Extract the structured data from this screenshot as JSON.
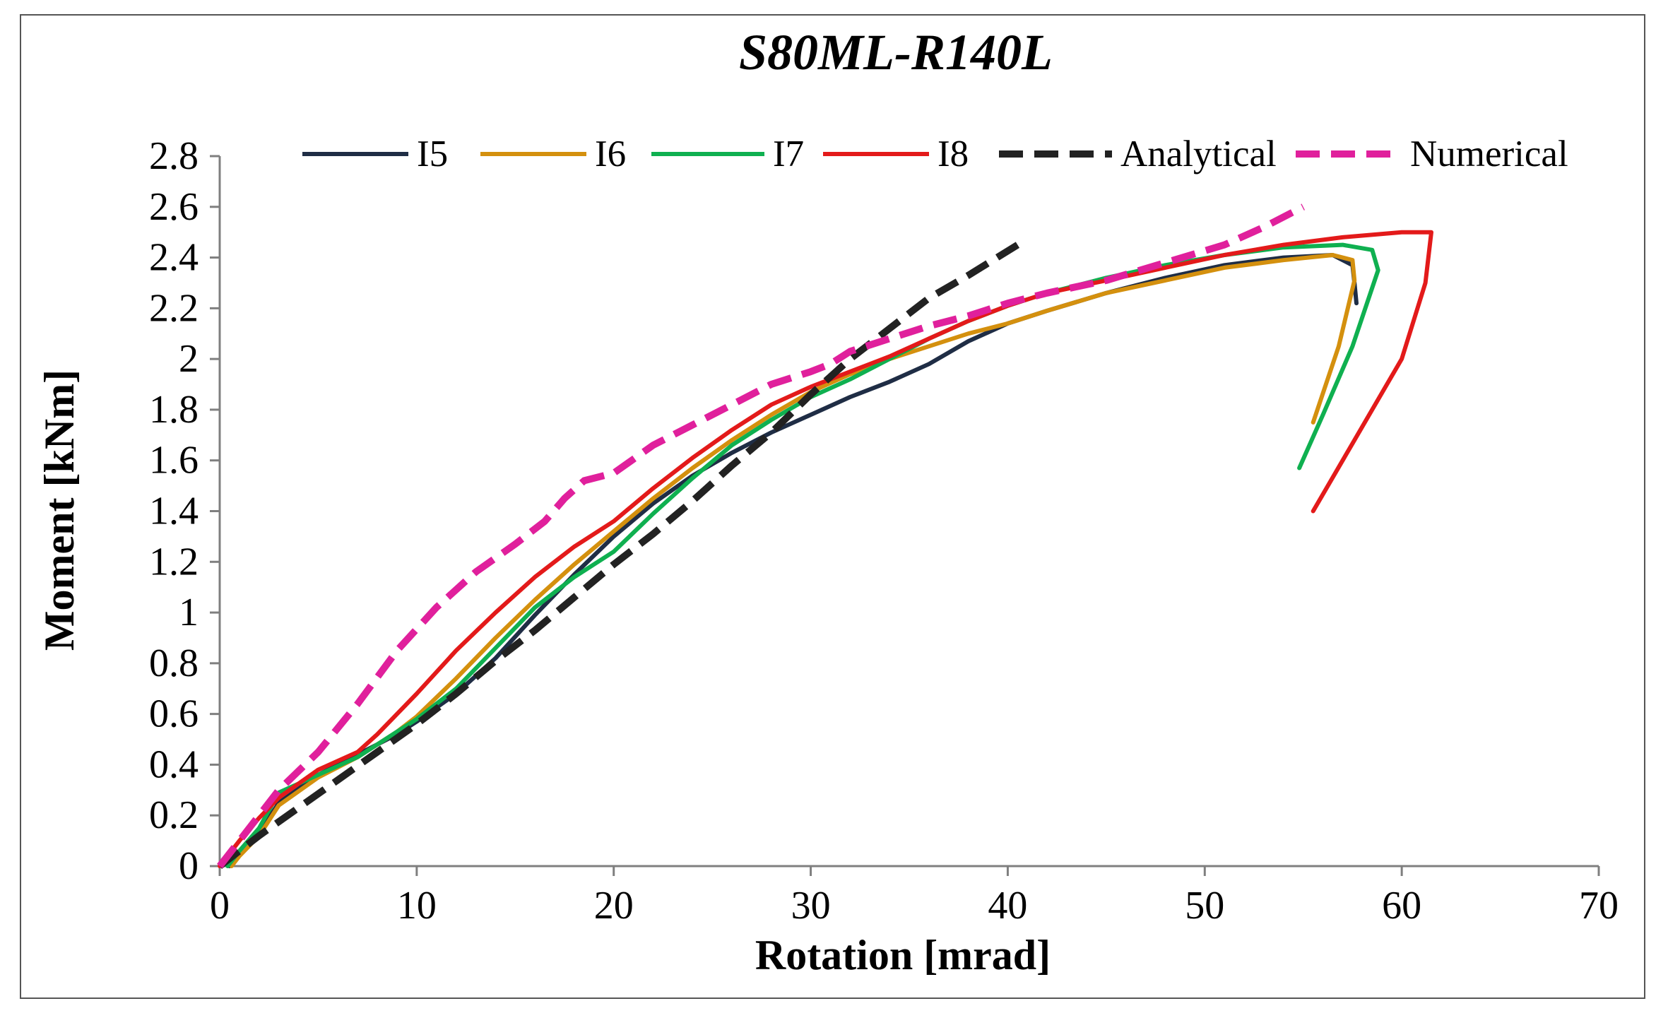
{
  "chart_data": {
    "type": "line",
    "title": "S80ML-R140L",
    "xlabel": "Rotation [mrad]",
    "ylabel": "Moment [kNm]",
    "xlim": [
      0,
      70
    ],
    "ylim": [
      0,
      2.8
    ],
    "xticks": [
      0,
      10,
      20,
      30,
      40,
      50,
      60,
      70
    ],
    "xtick_labels": [
      "0",
      "10",
      "20",
      "30",
      "40",
      "50",
      "60",
      "70"
    ],
    "yticks": [
      0,
      0.2,
      0.4,
      0.6,
      0.8,
      1.0,
      1.2,
      1.4,
      1.6,
      1.8,
      2.0,
      2.2,
      2.4,
      2.6,
      2.8
    ],
    "ytick_labels": [
      "0",
      "0.2",
      "0.4",
      "0.6",
      "0.8",
      "1",
      "1.2",
      "1.4",
      "1.6",
      "1.8",
      "2",
      "2.2",
      "2.4",
      "2.6",
      "2.8"
    ],
    "grid": false,
    "legend_position": "top",
    "series": [
      {
        "name": "I5",
        "color": "#1f2d45",
        "dash": false,
        "points": [
          [
            0.5,
            0
          ],
          [
            1,
            0.05
          ],
          [
            2,
            0.13
          ],
          [
            3,
            0.25
          ],
          [
            5,
            0.36
          ],
          [
            7,
            0.44
          ],
          [
            9,
            0.52
          ],
          [
            10,
            0.57
          ],
          [
            12,
            0.68
          ],
          [
            14,
            0.82
          ],
          [
            16,
            0.99
          ],
          [
            18,
            1.15
          ],
          [
            20,
            1.3
          ],
          [
            22,
            1.43
          ],
          [
            24,
            1.54
          ],
          [
            26,
            1.63
          ],
          [
            28,
            1.71
          ],
          [
            30,
            1.78
          ],
          [
            32,
            1.85
          ],
          [
            34,
            1.91
          ],
          [
            36,
            1.98
          ],
          [
            38,
            2.07
          ],
          [
            40,
            2.14
          ],
          [
            42,
            2.19
          ],
          [
            45,
            2.26
          ],
          [
            48,
            2.32
          ],
          [
            51,
            2.37
          ],
          [
            54,
            2.4
          ],
          [
            56.5,
            2.41
          ],
          [
            57.5,
            2.37
          ],
          [
            57.6,
            2.3
          ],
          [
            57.7,
            2.22
          ]
        ]
      },
      {
        "name": "I6",
        "color": "#d4900e",
        "dash": false,
        "points": [
          [
            0.6,
            0
          ],
          [
            1,
            0.04
          ],
          [
            2,
            0.12
          ],
          [
            3,
            0.24
          ],
          [
            5,
            0.35
          ],
          [
            7,
            0.43
          ],
          [
            9,
            0.53
          ],
          [
            10,
            0.59
          ],
          [
            12,
            0.74
          ],
          [
            14,
            0.9
          ],
          [
            16,
            1.05
          ],
          [
            18,
            1.19
          ],
          [
            20,
            1.32
          ],
          [
            22,
            1.45
          ],
          [
            24,
            1.57
          ],
          [
            26,
            1.68
          ],
          [
            28,
            1.78
          ],
          [
            30,
            1.87
          ],
          [
            32,
            1.94
          ],
          [
            34,
            2.0
          ],
          [
            36,
            2.05
          ],
          [
            38,
            2.1
          ],
          [
            40,
            2.14
          ],
          [
            42,
            2.19
          ],
          [
            45,
            2.26
          ],
          [
            48,
            2.31
          ],
          [
            51,
            2.36
          ],
          [
            54,
            2.39
          ],
          [
            56.5,
            2.41
          ],
          [
            57.5,
            2.39
          ],
          [
            57.6,
            2.31
          ],
          [
            56.8,
            2.05
          ],
          [
            55.5,
            1.75
          ]
        ]
      },
      {
        "name": "I7",
        "color": "#0fb050",
        "dash": false,
        "points": [
          [
            0.4,
            0
          ],
          [
            1,
            0.06
          ],
          [
            2,
            0.15
          ],
          [
            3,
            0.29
          ],
          [
            5,
            0.36
          ],
          [
            7,
            0.43
          ],
          [
            9,
            0.53
          ],
          [
            10,
            0.58
          ],
          [
            12,
            0.7
          ],
          [
            14,
            0.86
          ],
          [
            16,
            1.02
          ],
          [
            18,
            1.14
          ],
          [
            20,
            1.24
          ],
          [
            22,
            1.39
          ],
          [
            24,
            1.53
          ],
          [
            26,
            1.66
          ],
          [
            28,
            1.76
          ],
          [
            30,
            1.85
          ],
          [
            32,
            1.92
          ],
          [
            34,
            2.0
          ],
          [
            36,
            2.08
          ],
          [
            38,
            2.15
          ],
          [
            40,
            2.21
          ],
          [
            42,
            2.26
          ],
          [
            45,
            2.32
          ],
          [
            48,
            2.37
          ],
          [
            51,
            2.41
          ],
          [
            54,
            2.44
          ],
          [
            57,
            2.45
          ],
          [
            58.5,
            2.43
          ],
          [
            58.8,
            2.35
          ],
          [
            57.5,
            2.05
          ],
          [
            56,
            1.78
          ],
          [
            54.8,
            1.57
          ]
        ]
      },
      {
        "name": "I8",
        "color": "#e31a1a",
        "dash": false,
        "points": [
          [
            0,
            0
          ],
          [
            1,
            0.1
          ],
          [
            2,
            0.19
          ],
          [
            3,
            0.27
          ],
          [
            5,
            0.38
          ],
          [
            7,
            0.45
          ],
          [
            8,
            0.52
          ],
          [
            10,
            0.68
          ],
          [
            12,
            0.85
          ],
          [
            14,
            1.0
          ],
          [
            16,
            1.14
          ],
          [
            18,
            1.26
          ],
          [
            20,
            1.36
          ],
          [
            22,
            1.49
          ],
          [
            24,
            1.61
          ],
          [
            26,
            1.72
          ],
          [
            28,
            1.82
          ],
          [
            30,
            1.89
          ],
          [
            32,
            1.95
          ],
          [
            34,
            2.01
          ],
          [
            36,
            2.08
          ],
          [
            38,
            2.15
          ],
          [
            40,
            2.21
          ],
          [
            42,
            2.26
          ],
          [
            45,
            2.31
          ],
          [
            48,
            2.36
          ],
          [
            51,
            2.41
          ],
          [
            54,
            2.45
          ],
          [
            57,
            2.48
          ],
          [
            60,
            2.5
          ],
          [
            61.5,
            2.5
          ],
          [
            61.2,
            2.3
          ],
          [
            60,
            2.0
          ],
          [
            58.5,
            1.8
          ],
          [
            55.5,
            1.4
          ]
        ]
      },
      {
        "name": "Analytical",
        "color": "#222222",
        "dash": true,
        "points": [
          [
            0,
            0
          ],
          [
            2,
            0.12
          ],
          [
            4,
            0.23
          ],
          [
            6,
            0.34
          ],
          [
            8,
            0.45
          ],
          [
            10,
            0.56
          ],
          [
            12,
            0.68
          ],
          [
            14,
            0.81
          ],
          [
            16,
            0.93
          ],
          [
            18,
            1.06
          ],
          [
            20,
            1.19
          ],
          [
            22,
            1.31
          ],
          [
            24,
            1.44
          ],
          [
            26,
            1.58
          ],
          [
            28,
            1.71
          ],
          [
            30,
            1.86
          ],
          [
            32,
            2.0
          ],
          [
            34,
            2.12
          ],
          [
            36,
            2.24
          ],
          [
            38,
            2.33
          ],
          [
            40.5,
            2.45
          ]
        ]
      },
      {
        "name": "Numerical",
        "color": "#e0209c",
        "dash": true,
        "points": [
          [
            0,
            0
          ],
          [
            1,
            0.1
          ],
          [
            2,
            0.2
          ],
          [
            3,
            0.3
          ],
          [
            5,
            0.45
          ],
          [
            7,
            0.64
          ],
          [
            9,
            0.85
          ],
          [
            11,
            1.02
          ],
          [
            13,
            1.16
          ],
          [
            15,
            1.27
          ],
          [
            16.5,
            1.36
          ],
          [
            17.5,
            1.45
          ],
          [
            18.5,
            1.52
          ],
          [
            20,
            1.55
          ],
          [
            22,
            1.66
          ],
          [
            24,
            1.74
          ],
          [
            26,
            1.82
          ],
          [
            28,
            1.9
          ],
          [
            30,
            1.95
          ],
          [
            31,
            1.98
          ],
          [
            32,
            2.03
          ],
          [
            34,
            2.08
          ],
          [
            36,
            2.13
          ],
          [
            38,
            2.17
          ],
          [
            40,
            2.22
          ],
          [
            42,
            2.26
          ],
          [
            45,
            2.31
          ],
          [
            48,
            2.38
          ],
          [
            51,
            2.45
          ],
          [
            53,
            2.52
          ],
          [
            55,
            2.6
          ]
        ]
      }
    ]
  }
}
